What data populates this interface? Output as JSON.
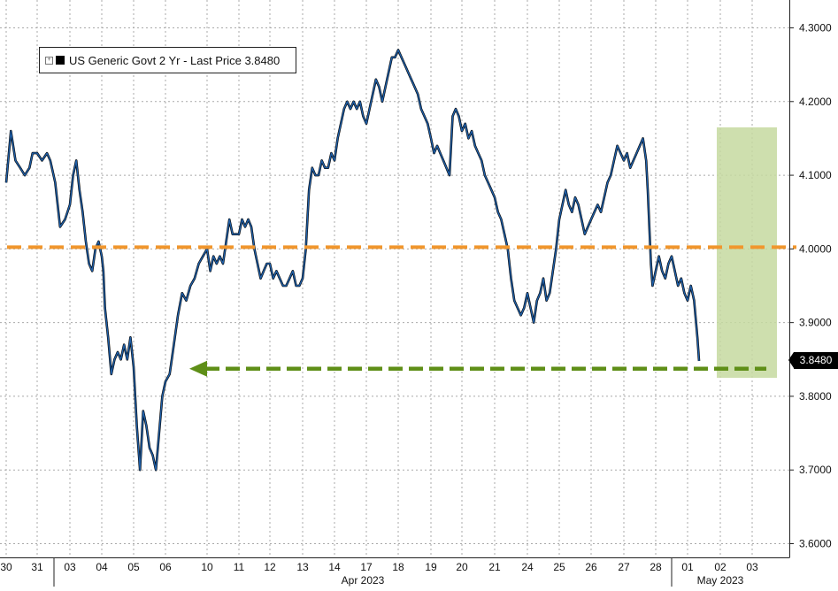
{
  "chart_data": {
    "type": "line",
    "series": [
      {
        "name": "US Generic Govt 2 Yr - Last Price",
        "last_value": "3.8480",
        "color": "#1f5fa8",
        "points": [
          [
            0,
            4.09
          ],
          [
            0.15,
            4.16
          ],
          [
            0.3,
            4.12
          ],
          [
            0.45,
            4.11
          ],
          [
            0.6,
            4.1
          ],
          [
            0.75,
            4.11
          ],
          [
            0.85,
            4.13
          ],
          [
            1.0,
            4.13
          ],
          [
            1.15,
            4.12
          ],
          [
            1.3,
            4.13
          ],
          [
            1.4,
            4.12
          ],
          [
            1.55,
            4.09
          ],
          [
            1.7,
            4.03
          ],
          [
            1.85,
            4.04
          ],
          [
            2.0,
            4.06
          ],
          [
            2.1,
            4.1
          ],
          [
            2.2,
            4.12
          ],
          [
            2.3,
            4.08
          ],
          [
            2.4,
            4.05
          ],
          [
            2.5,
            4.01
          ],
          [
            2.6,
            3.98
          ],
          [
            2.7,
            3.97
          ],
          [
            2.8,
            4.0
          ],
          [
            2.9,
            4.01
          ],
          [
            3.0,
            3.99
          ],
          [
            3.05,
            3.97
          ],
          [
            3.1,
            3.92
          ],
          [
            3.2,
            3.88
          ],
          [
            3.3,
            3.83
          ],
          [
            3.4,
            3.85
          ],
          [
            3.5,
            3.86
          ],
          [
            3.6,
            3.85
          ],
          [
            3.7,
            3.87
          ],
          [
            3.8,
            3.85
          ],
          [
            3.9,
            3.88
          ],
          [
            4.0,
            3.84
          ],
          [
            4.1,
            3.76
          ],
          [
            4.2,
            3.7
          ],
          [
            4.3,
            3.78
          ],
          [
            4.4,
            3.76
          ],
          [
            4.5,
            3.73
          ],
          [
            4.6,
            3.72
          ],
          [
            4.7,
            3.7
          ],
          [
            4.8,
            3.75
          ],
          [
            4.9,
            3.8
          ],
          [
            5.0,
            3.82
          ],
          [
            5.1,
            3.83
          ],
          [
            5.15,
            3.85
          ],
          [
            5.3,
            3.91
          ],
          [
            5.4,
            3.94
          ],
          [
            5.5,
            3.93
          ],
          [
            5.6,
            3.95
          ],
          [
            5.7,
            3.96
          ],
          [
            5.8,
            3.98
          ],
          [
            5.9,
            3.99
          ],
          [
            6.0,
            4.0
          ],
          [
            6.1,
            3.97
          ],
          [
            6.2,
            3.99
          ],
          [
            6.3,
            3.98
          ],
          [
            6.4,
            3.99
          ],
          [
            6.5,
            3.98
          ],
          [
            6.6,
            4.01
          ],
          [
            6.7,
            4.04
          ],
          [
            6.8,
            4.02
          ],
          [
            6.9,
            4.02
          ],
          [
            7.0,
            4.02
          ],
          [
            7.1,
            4.04
          ],
          [
            7.2,
            4.03
          ],
          [
            7.3,
            4.04
          ],
          [
            7.4,
            4.03
          ],
          [
            7.5,
            4.0
          ],
          [
            7.6,
            3.98
          ],
          [
            7.7,
            3.96
          ],
          [
            7.8,
            3.97
          ],
          [
            7.9,
            3.98
          ],
          [
            8.0,
            3.98
          ],
          [
            8.1,
            3.96
          ],
          [
            8.2,
            3.97
          ],
          [
            8.3,
            3.96
          ],
          [
            8.4,
            3.95
          ],
          [
            8.5,
            3.95
          ],
          [
            8.6,
            3.96
          ],
          [
            8.7,
            3.97
          ],
          [
            8.8,
            3.95
          ],
          [
            8.9,
            3.95
          ],
          [
            9.0,
            3.96
          ],
          [
            9.1,
            4.0
          ],
          [
            9.2,
            4.08
          ],
          [
            9.3,
            4.11
          ],
          [
            9.4,
            4.1
          ],
          [
            9.5,
            4.1
          ],
          [
            9.6,
            4.12
          ],
          [
            9.7,
            4.11
          ],
          [
            9.8,
            4.11
          ],
          [
            9.9,
            4.13
          ],
          [
            10.0,
            4.12
          ],
          [
            10.1,
            4.15
          ],
          [
            10.2,
            4.17
          ],
          [
            10.3,
            4.19
          ],
          [
            10.4,
            4.2
          ],
          [
            10.5,
            4.19
          ],
          [
            10.6,
            4.2
          ],
          [
            10.7,
            4.19
          ],
          [
            10.8,
            4.2
          ],
          [
            10.9,
            4.18
          ],
          [
            11.0,
            4.17
          ],
          [
            11.1,
            4.19
          ],
          [
            11.2,
            4.21
          ],
          [
            11.3,
            4.23
          ],
          [
            11.4,
            4.22
          ],
          [
            11.5,
            4.2
          ],
          [
            11.6,
            4.22
          ],
          [
            11.7,
            4.24
          ],
          [
            11.8,
            4.26
          ],
          [
            11.9,
            4.26
          ],
          [
            12.0,
            4.27
          ],
          [
            12.1,
            4.26
          ],
          [
            12.2,
            4.25
          ],
          [
            12.3,
            4.24
          ],
          [
            12.4,
            4.23
          ],
          [
            12.5,
            4.22
          ],
          [
            12.6,
            4.21
          ],
          [
            12.7,
            4.19
          ],
          [
            12.8,
            4.18
          ],
          [
            12.9,
            4.17
          ],
          [
            13.0,
            4.15
          ],
          [
            13.1,
            4.13
          ],
          [
            13.2,
            4.14
          ],
          [
            13.3,
            4.13
          ],
          [
            13.4,
            4.12
          ],
          [
            13.5,
            4.11
          ],
          [
            13.6,
            4.1
          ],
          [
            13.7,
            4.18
          ],
          [
            13.8,
            4.19
          ],
          [
            13.9,
            4.18
          ],
          [
            14.0,
            4.16
          ],
          [
            14.1,
            4.17
          ],
          [
            14.2,
            4.15
          ],
          [
            14.3,
            4.16
          ],
          [
            14.4,
            4.14
          ],
          [
            14.5,
            4.13
          ],
          [
            14.6,
            4.12
          ],
          [
            14.7,
            4.1
          ],
          [
            14.8,
            4.09
          ],
          [
            14.9,
            4.08
          ],
          [
            15.0,
            4.07
          ],
          [
            15.1,
            4.05
          ],
          [
            15.2,
            4.04
          ],
          [
            15.3,
            4.02
          ],
          [
            15.4,
            4.0
          ],
          [
            15.5,
            3.96
          ],
          [
            15.6,
            3.93
          ],
          [
            15.7,
            3.92
          ],
          [
            15.8,
            3.91
          ],
          [
            15.9,
            3.92
          ],
          [
            16.0,
            3.94
          ],
          [
            16.1,
            3.92
          ],
          [
            16.2,
            3.9
          ],
          [
            16.3,
            3.93
          ],
          [
            16.4,
            3.94
          ],
          [
            16.5,
            3.96
          ],
          [
            16.6,
            3.93
          ],
          [
            16.7,
            3.94
          ],
          [
            16.8,
            3.97
          ],
          [
            16.9,
            4.0
          ],
          [
            17.0,
            4.04
          ],
          [
            17.1,
            4.06
          ],
          [
            17.2,
            4.08
          ],
          [
            17.3,
            4.06
          ],
          [
            17.4,
            4.05
          ],
          [
            17.5,
            4.07
          ],
          [
            17.6,
            4.06
          ],
          [
            17.7,
            4.04
          ],
          [
            17.8,
            4.02
          ],
          [
            17.9,
            4.03
          ],
          [
            18.0,
            4.04
          ],
          [
            18.1,
            4.05
          ],
          [
            18.2,
            4.06
          ],
          [
            18.3,
            4.05
          ],
          [
            18.4,
            4.07
          ],
          [
            18.5,
            4.09
          ],
          [
            18.6,
            4.1
          ],
          [
            18.7,
            4.12
          ],
          [
            18.8,
            4.14
          ],
          [
            18.9,
            4.13
          ],
          [
            19.0,
            4.12
          ],
          [
            19.1,
            4.13
          ],
          [
            19.2,
            4.11
          ],
          [
            19.3,
            4.12
          ],
          [
            19.4,
            4.13
          ],
          [
            19.5,
            4.14
          ],
          [
            19.6,
            4.15
          ],
          [
            19.7,
            4.12
          ],
          [
            19.75,
            4.08
          ],
          [
            19.8,
            4.03
          ],
          [
            19.85,
            3.98
          ],
          [
            19.9,
            3.95
          ],
          [
            20.0,
            3.97
          ],
          [
            20.1,
            3.99
          ],
          [
            20.2,
            3.97
          ],
          [
            20.3,
            3.96
          ],
          [
            20.4,
            3.98
          ],
          [
            20.5,
            3.99
          ],
          [
            20.6,
            3.97
          ],
          [
            20.7,
            3.95
          ],
          [
            20.8,
            3.96
          ],
          [
            20.9,
            3.94
          ],
          [
            21.0,
            3.93
          ],
          [
            21.1,
            3.95
          ],
          [
            21.2,
            3.93
          ],
          [
            21.3,
            3.88
          ],
          [
            21.35,
            3.848
          ]
        ]
      }
    ],
    "x_tick_labels": [
      "30",
      "31",
      "03",
      "04",
      "05",
      "06",
      "10",
      "11",
      "12",
      "13",
      "14",
      "17",
      "18",
      "19",
      "20",
      "21",
      "24",
      "25",
      "26",
      "27",
      "28",
      "01",
      "02",
      "03"
    ],
    "x_month_labels": [
      "Apr 2023",
      "May 2023"
    ],
    "y_tick_labels": [
      "3.6000",
      "3.7000",
      "3.8000",
      "3.9000",
      "4.0000",
      "4.1000",
      "4.2000",
      "4.3000"
    ],
    "ylim": [
      3.585,
      4.315
    ],
    "reference_lines": [
      {
        "value": 4.0,
        "color": "#f0962d",
        "style": "dashed"
      },
      {
        "value": 3.8375,
        "color": "#5f8f18",
        "style": "dashed-arrow-left"
      }
    ],
    "highlight_band": {
      "x_from_label": "02",
      "x_to_label": "03",
      "y_range": [
        3.825,
        4.165
      ],
      "color": "#c6d9a0"
    },
    "grid": true,
    "legend": {
      "placement": "top-left",
      "label": "US Generic Govt 2 Yr - Last Price 3.8480"
    }
  }
}
